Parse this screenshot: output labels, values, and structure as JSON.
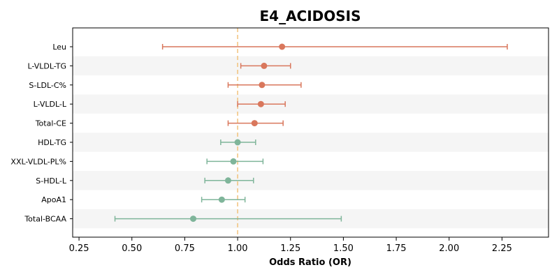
{
  "chart_data": {
    "type": "forest",
    "title": "E4_ACIDOSIS",
    "xlabel": "Odds Ratio (OR)",
    "xlim": [
      0.22,
      2.47
    ],
    "xticks": [
      "0.25",
      "0.50",
      "0.75",
      "1.00",
      "1.25",
      "1.50",
      "1.75",
      "2.00",
      "2.25"
    ],
    "reference_line": 1.0,
    "colors": {
      "positive": "#d9775c",
      "negative": "#7fb59a",
      "reference": "#f2c27b",
      "band": "#f5f5f5"
    },
    "rows": [
      {
        "label": "Leu",
        "or": 1.21,
        "lo": 0.645,
        "hi": 2.275,
        "group": "positive"
      },
      {
        "label": "L-VLDL-TG",
        "or": 1.125,
        "lo": 1.015,
        "hi": 1.25,
        "group": "positive"
      },
      {
        "label": "S-LDL-C%",
        "or": 1.115,
        "lo": 0.955,
        "hi": 1.3,
        "group": "positive"
      },
      {
        "label": "L-VLDL-L",
        "or": 1.11,
        "lo": 1.0,
        "hi": 1.225,
        "group": "positive"
      },
      {
        "label": "Total-CE",
        "or": 1.08,
        "lo": 0.955,
        "hi": 1.215,
        "group": "positive"
      },
      {
        "label": "HDL-TG",
        "or": 1.0,
        "lo": 0.92,
        "hi": 1.085,
        "group": "negative"
      },
      {
        "label": "XXL-VLDL-PL%",
        "or": 0.98,
        "lo": 0.855,
        "hi": 1.12,
        "group": "negative"
      },
      {
        "label": "S-HDL-L",
        "or": 0.955,
        "lo": 0.845,
        "hi": 1.075,
        "group": "negative"
      },
      {
        "label": "ApoA1",
        "or": 0.925,
        "lo": 0.83,
        "hi": 1.035,
        "group": "negative"
      },
      {
        "label": "Total-BCAA",
        "or": 0.79,
        "lo": 0.42,
        "hi": 1.49,
        "group": "negative"
      }
    ]
  }
}
